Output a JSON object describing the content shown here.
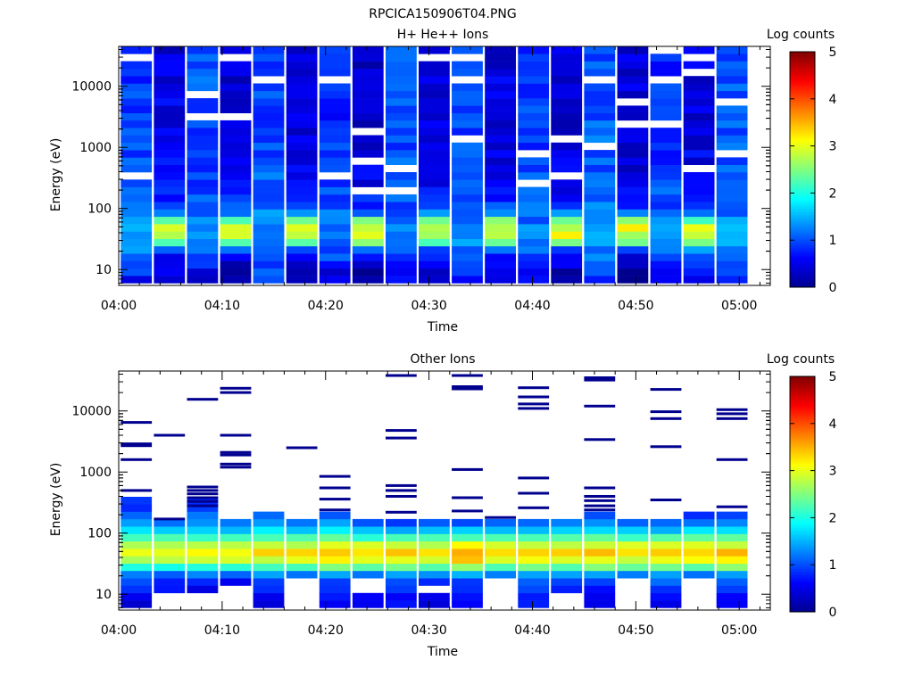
{
  "figure_title": "RPCICA150906T04.PNG",
  "colormap": [
    "#00008f",
    "#0000ff",
    "#0080ff",
    "#00ffff",
    "#80ff80",
    "#ffff00",
    "#ff8000",
    "#ff0000",
    "#800000"
  ],
  "chart_data": [
    {
      "type": "heatmap",
      "title": "H+ He++ Ions",
      "xlabel": "Time",
      "ylabel": "Energy (eV)",
      "x_tick_labels": [
        "04:00",
        "04:10",
        "04:20",
        "04:30",
        "04:40",
        "04:50",
        "05:00"
      ],
      "x_range_minutes": [
        0,
        63
      ],
      "y_scale": "log",
      "y_tick_labels": [
        "10",
        "100",
        "1000",
        "10000"
      ],
      "y_range": [
        5.5,
        45000
      ],
      "colorbar_label": "Log counts",
      "colorbar_ticks": [
        "0",
        "1",
        "2",
        "3",
        "4",
        "5"
      ],
      "colorbar_range": [
        0,
        5
      ],
      "time_bins_minutes": [
        1.7,
        4.9,
        8.1,
        11.3,
        14.5,
        17.7,
        20.9,
        24.1,
        27.3,
        30.5,
        33.7,
        36.9,
        40.1,
        43.3,
        46.5,
        49.7,
        52.9,
        56.1,
        59.3
      ],
      "profile_energy_ev": [
        8,
        11,
        15,
        20,
        27,
        36,
        48,
        64,
        90,
        150,
        300,
        1000,
        3000,
        10000,
        40000
      ],
      "profile_log_counts": [
        [
          0.7,
          1.0,
          1.2,
          1.3,
          1.35,
          1.4,
          1.4,
          1.3,
          1.2,
          1.05,
          1.0,
          0.95,
          0.9,
          0.9,
          0.85
        ],
        [
          0.3,
          0.5,
          0.6,
          0.9,
          2.3,
          2.8,
          3.0,
          2.4,
          1.0,
          0.75,
          0.6,
          0.55,
          0.5,
          0.45,
          0.45
        ],
        [
          0.5,
          0.8,
          1.0,
          1.1,
          1.2,
          1.3,
          1.35,
          1.2,
          1.1,
          1.0,
          1.0,
          0.95,
          1.0,
          1.0,
          1.0
        ],
        [
          0.0,
          0.1,
          0.5,
          0.8,
          2.3,
          2.8,
          3.0,
          2.4,
          1.0,
          0.7,
          0.5,
          0.45,
          0.4,
          0.4,
          0.35
        ],
        [
          0.9,
          1.0,
          1.2,
          1.3,
          1.35,
          1.4,
          1.4,
          1.3,
          1.2,
          1.1,
          1.05,
          1.0,
          0.9,
          0.9,
          0.9
        ],
        [
          0.0,
          0.1,
          0.5,
          0.8,
          2.3,
          2.8,
          3.0,
          2.4,
          1.0,
          0.7,
          0.5,
          0.4,
          0.4,
          0.35,
          0.35
        ],
        [
          0.4,
          0.7,
          0.9,
          1.1,
          1.2,
          1.3,
          1.3,
          1.2,
          1.1,
          0.95,
          0.9,
          0.85,
          0.8,
          0.8,
          0.75
        ],
        [
          0.0,
          0.0,
          0.5,
          0.8,
          2.3,
          2.8,
          3.0,
          2.4,
          1.0,
          0.7,
          0.5,
          0.4,
          0.35,
          0.35,
          0.35
        ],
        [
          0.7,
          0.8,
          1.0,
          1.2,
          1.25,
          1.3,
          1.3,
          1.25,
          1.1,
          1.05,
          1.0,
          1.0,
          1.0,
          1.0,
          1.0
        ],
        [
          0.2,
          0.4,
          0.6,
          0.9,
          2.3,
          2.8,
          3.0,
          2.4,
          1.0,
          0.7,
          0.5,
          0.45,
          0.4,
          0.4,
          0.4
        ],
        [
          0.8,
          1.0,
          1.1,
          1.2,
          1.3,
          1.35,
          1.35,
          1.25,
          1.15,
          1.05,
          1.0,
          0.95,
          0.95,
          0.95,
          0.95
        ],
        [
          0.3,
          0.6,
          0.7,
          0.9,
          2.3,
          2.8,
          3.0,
          2.4,
          1.0,
          0.7,
          0.55,
          0.5,
          0.45,
          0.45,
          0.45
        ],
        [
          0.6,
          0.8,
          1.0,
          1.1,
          1.2,
          1.3,
          1.3,
          1.2,
          1.1,
          1.0,
          0.95,
          0.9,
          0.9,
          0.9,
          0.85
        ],
        [
          0.0,
          0.3,
          0.5,
          0.8,
          2.4,
          3.2,
          3.0,
          2.4,
          1.0,
          0.7,
          0.5,
          0.45,
          0.4,
          0.4,
          0.4
        ],
        [
          0.8,
          0.9,
          1.1,
          1.2,
          1.25,
          1.3,
          1.3,
          1.25,
          1.2,
          1.15,
          1.1,
          1.1,
          1.05,
          1.05,
          1.05
        ],
        [
          0.0,
          0.3,
          0.5,
          0.8,
          2.3,
          2.8,
          3.0,
          2.4,
          1.0,
          0.7,
          0.5,
          0.45,
          0.4,
          0.4,
          0.4
        ],
        [
          0.6,
          0.8,
          1.0,
          1.1,
          1.2,
          1.3,
          1.3,
          1.2,
          1.1,
          1.0,
          0.95,
          0.9,
          0.85,
          0.85,
          0.85
        ],
        [
          0.4,
          0.7,
          0.8,
          1.0,
          2.3,
          2.8,
          3.0,
          2.4,
          1.0,
          0.7,
          0.55,
          0.5,
          0.45,
          0.45,
          0.45
        ],
        [
          0.9,
          1.0,
          1.1,
          1.2,
          1.3,
          1.35,
          1.35,
          1.3,
          1.2,
          1.1,
          1.05,
          1.05,
          1.05,
          1.05,
          1.05
        ]
      ]
    },
    {
      "type": "heatmap",
      "title": "Other Ions",
      "xlabel": "Time",
      "ylabel": "Energy (eV)",
      "x_tick_labels": [
        "04:00",
        "04:10",
        "04:20",
        "04:30",
        "04:40",
        "04:50",
        "05:00"
      ],
      "x_range_minutes": [
        0,
        63
      ],
      "y_scale": "log",
      "y_tick_labels": [
        "10",
        "100",
        "1000",
        "10000"
      ],
      "y_range": [
        5.5,
        45000
      ],
      "colorbar_label": "Log counts",
      "colorbar_ticks": [
        "0",
        "1",
        "2",
        "3",
        "4",
        "5"
      ],
      "colorbar_range": [
        0,
        5
      ],
      "time_bins_minutes": [
        1.7,
        4.9,
        8.1,
        11.3,
        14.5,
        17.7,
        20.9,
        24.1,
        27.3,
        30.5,
        33.7,
        36.9,
        40.1,
        43.3,
        46.5,
        49.7,
        52.9,
        56.1,
        59.3
      ],
      "profile_energy_ev": [
        8,
        11,
        15,
        20,
        25,
        32,
        40,
        50,
        63,
        80,
        100,
        130,
        170,
        220,
        300
      ],
      "profile_log_counts": [
        [
          0.3,
          0.7,
          0.9,
          1.0,
          1.8,
          2.4,
          2.8,
          3.0,
          2.7,
          2.3,
          1.9,
          1.5,
          1.2,
          1.0,
          0.8
        ],
        [
          null,
          0.6,
          0.8,
          0.9,
          1.8,
          2.4,
          2.9,
          3.1,
          2.8,
          2.3,
          1.8,
          1.3,
          0.9,
          null,
          null
        ],
        [
          null,
          0.5,
          0.7,
          1.0,
          1.9,
          2.5,
          3.0,
          3.2,
          2.9,
          2.4,
          1.9,
          1.5,
          1.2,
          1.0,
          0.8
        ],
        [
          null,
          null,
          0.6,
          0.9,
          1.9,
          2.5,
          3.0,
          3.2,
          2.9,
          2.3,
          1.8,
          1.3,
          0.9,
          null,
          null
        ],
        [
          0.5,
          0.7,
          0.9,
          1.1,
          2.0,
          2.6,
          3.1,
          3.3,
          2.9,
          2.4,
          1.9,
          1.5,
          1.2,
          1.0,
          null
        ],
        [
          null,
          null,
          null,
          0.9,
          2.0,
          2.6,
          3.1,
          3.3,
          2.9,
          2.4,
          1.9,
          1.4,
          1.0,
          null,
          null
        ],
        [
          0.6,
          0.8,
          1.0,
          1.1,
          2.1,
          2.8,
          3.3,
          3.4,
          3.0,
          2.5,
          2.0,
          1.5,
          1.2,
          1.0,
          null
        ],
        [
          0.5,
          null,
          null,
          0.9,
          2.0,
          2.6,
          3.1,
          3.2,
          2.9,
          2.3,
          1.8,
          1.3,
          0.8,
          null,
          null
        ],
        [
          0.6,
          0.8,
          1.0,
          1.2,
          2.2,
          2.8,
          3.3,
          3.4,
          3.0,
          2.4,
          1.8,
          1.2,
          0.8,
          null,
          null
        ],
        [
          0.5,
          null,
          0.7,
          1.0,
          2.1,
          2.7,
          3.2,
          3.3,
          2.9,
          2.3,
          1.7,
          1.2,
          0.9,
          null,
          null
        ],
        [
          0.5,
          0.7,
          0.9,
          1.2,
          2.3,
          3.0,
          3.5,
          3.6,
          3.1,
          2.5,
          1.8,
          1.2,
          0.8,
          null,
          null
        ],
        [
          null,
          null,
          null,
          1.0,
          2.1,
          2.7,
          3.2,
          3.3,
          2.9,
          2.3,
          1.8,
          1.3,
          0.9,
          null,
          null
        ],
        [
          0.7,
          0.8,
          1.0,
          1.2,
          2.2,
          2.8,
          3.3,
          3.4,
          3.0,
          2.4,
          1.8,
          1.3,
          1.0,
          null,
          null
        ],
        [
          null,
          0.6,
          0.9,
          1.1,
          2.1,
          2.7,
          3.2,
          3.3,
          2.9,
          2.4,
          1.9,
          1.4,
          1.0,
          null,
          null
        ],
        [
          0.5,
          0.7,
          0.9,
          1.2,
          2.2,
          2.8,
          3.3,
          3.4,
          3.0,
          2.4,
          1.9,
          1.5,
          1.1,
          0.9,
          null
        ],
        [
          null,
          null,
          null,
          1.0,
          2.1,
          2.7,
          3.1,
          3.3,
          2.9,
          2.3,
          1.8,
          1.3,
          0.9,
          null,
          null
        ],
        [
          0.6,
          0.8,
          1.0,
          1.2,
          2.2,
          2.8,
          3.3,
          3.5,
          3.0,
          2.4,
          1.8,
          1.2,
          0.8,
          null,
          null
        ],
        [
          null,
          null,
          null,
          1.0,
          2.1,
          2.7,
          3.2,
          3.3,
          2.9,
          2.4,
          1.9,
          1.4,
          1.0,
          0.8,
          null
        ],
        [
          0.6,
          0.8,
          1.0,
          1.2,
          2.2,
          2.9,
          3.3,
          3.4,
          3.0,
          2.4,
          1.9,
          1.4,
          1.1,
          0.9,
          null
        ]
      ],
      "sparse_energy_lines_ev": [
        [
          500,
          1600,
          2700,
          2900,
          6500
        ],
        [
          170,
          4000
        ],
        [
          280,
          330,
          380,
          440,
          500,
          570,
          15500
        ],
        [
          4000,
          1200,
          1350,
          1900,
          2100,
          20000,
          23500
        ],
        [],
        [
          2500
        ],
        [
          240,
          360,
          550,
          850
        ],
        [],
        [
          220,
          400,
          500,
          600,
          3600,
          4800,
          38000
        ],
        [],
        [
          230,
          380,
          1100,
          23000,
          25000,
          38000
        ],
        [
          180
        ],
        [
          260,
          450,
          800,
          11000,
          13000,
          17000,
          24000
        ],
        [],
        [
          240,
          280,
          340,
          400,
          550,
          3400,
          12000,
          32000,
          35000
        ],
        [],
        [
          350,
          2600,
          7500,
          9700,
          22500
        ],
        [],
        [
          270,
          1600,
          7500,
          9000,
          10500
        ]
      ]
    }
  ]
}
